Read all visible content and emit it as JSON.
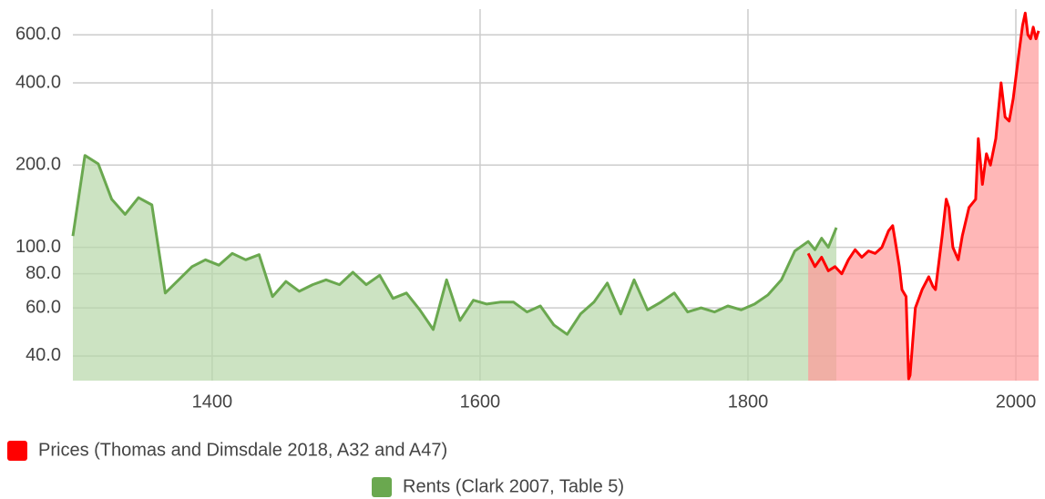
{
  "chart_data": {
    "type": "line",
    "log_scale_y": true,
    "grid": true,
    "xlim": [
      1296,
      2017
    ],
    "xticks": [
      1400,
      1600,
      1800,
      2000
    ],
    "ylim": [
      32.5,
      745
    ],
    "yticks": [
      {
        "value": 40,
        "label": "40.0"
      },
      {
        "value": 60,
        "label": "60.0"
      },
      {
        "value": 80,
        "label": "80.0"
      },
      {
        "value": 100,
        "label": "100.0"
      },
      {
        "value": 200,
        "label": "200.0"
      },
      {
        "value": 400,
        "label": "400.0"
      },
      {
        "value": 600,
        "label": "600.0"
      }
    ],
    "legend_position": "bottom",
    "series": [
      {
        "name": "Prices (Thomas and Dimsdale 2018, A32 and A47)",
        "color": "#ff0000",
        "area_color": "#ff9999",
        "x": [
          1845,
          1850,
          1855,
          1860,
          1865,
          1870,
          1875,
          1880,
          1885,
          1890,
          1895,
          1900,
          1905,
          1908,
          1910,
          1913,
          1915,
          1918,
          1920,
          1921,
          1925,
          1930,
          1935,
          1938,
          1940,
          1945,
          1948,
          1950,
          1953,
          1957,
          1960,
          1965,
          1970,
          1972,
          1975,
          1978,
          1981,
          1985,
          1989,
          1992,
          1995,
          1998,
          2002,
          2005,
          2007,
          2009,
          2011,
          2013,
          2015,
          2017
        ],
        "values": [
          95,
          85,
          92,
          82,
          85,
          80,
          90,
          98,
          92,
          97,
          95,
          100,
          115,
          120,
          105,
          85,
          70,
          66,
          33,
          34,
          60,
          70,
          78,
          72,
          70,
          110,
          150,
          140,
          100,
          90,
          110,
          140,
          150,
          250,
          170,
          220,
          200,
          250,
          400,
          300,
          290,
          350,
          500,
          650,
          720,
          600,
          580,
          640,
          580,
          620
        ]
      },
      {
        "name": "Rents (Clark 2007, Table 5)",
        "color": "#6aa84f",
        "area_color": "#b6d7a8",
        "x": [
          1296,
          1305,
          1315,
          1325,
          1335,
          1345,
          1355,
          1365,
          1375,
          1385,
          1395,
          1405,
          1415,
          1425,
          1435,
          1445,
          1455,
          1465,
          1475,
          1485,
          1495,
          1505,
          1515,
          1525,
          1535,
          1545,
          1555,
          1565,
          1575,
          1585,
          1595,
          1605,
          1615,
          1625,
          1635,
          1645,
          1655,
          1665,
          1675,
          1685,
          1695,
          1705,
          1715,
          1725,
          1735,
          1745,
          1755,
          1765,
          1775,
          1785,
          1795,
          1805,
          1815,
          1825,
          1835,
          1845,
          1850,
          1855,
          1860,
          1866
        ],
        "values": [
          110,
          217,
          202,
          150,
          132,
          152,
          143,
          68,
          76,
          85,
          90,
          86,
          95,
          90,
          94,
          66,
          75,
          69,
          73,
          76,
          73,
          81,
          73,
          79,
          65,
          68,
          59,
          50,
          76,
          54,
          64,
          62,
          63,
          63,
          58,
          61,
          52,
          48,
          57,
          63,
          74,
          57,
          76,
          59,
          63,
          68,
          58,
          60,
          58,
          61,
          59,
          62,
          67,
          76,
          97,
          105,
          98,
          108,
          100,
          118
        ]
      }
    ]
  }
}
